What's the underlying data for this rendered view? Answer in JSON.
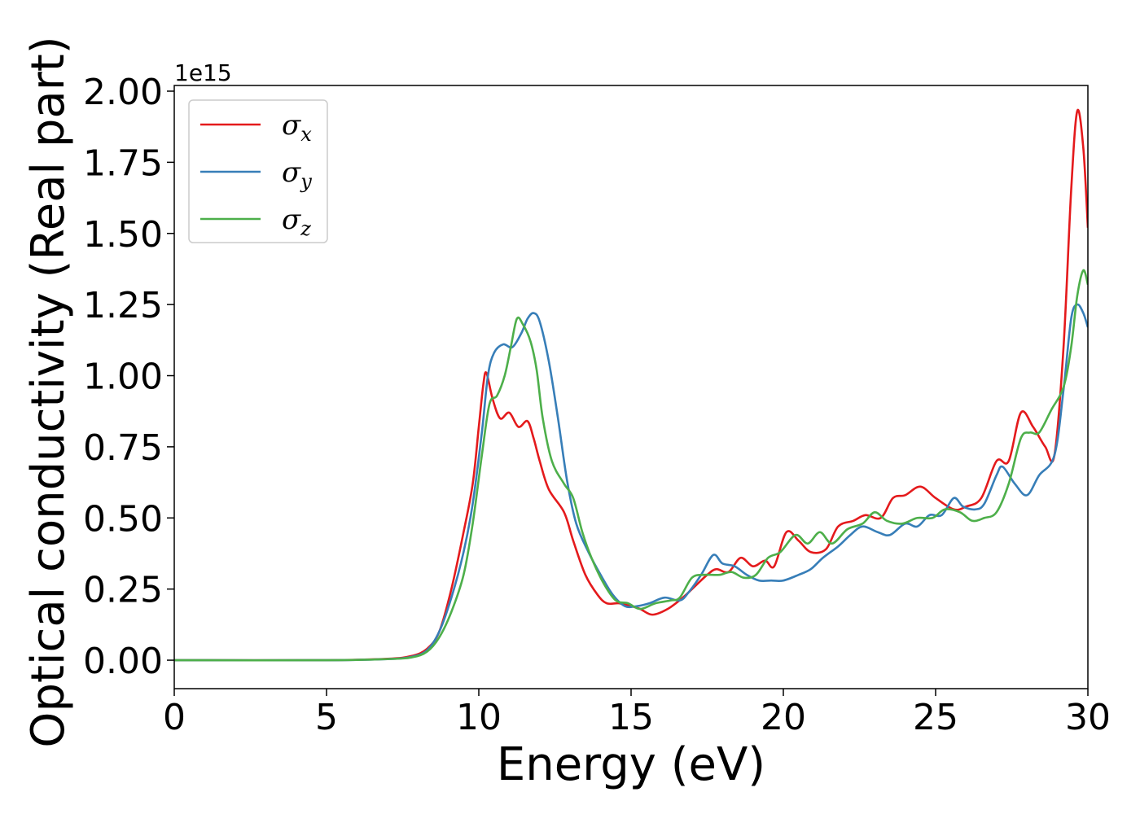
{
  "chart_data": {
    "type": "line",
    "xlabel": "Energy (eV)",
    "ylabel": "Optical conductivity (Real part)",
    "y_offset_label": "1e15",
    "xlim": [
      0,
      30
    ],
    "ylim": [
      -0.1,
      2.02
    ],
    "x_ticks": [
      0,
      5,
      10,
      15,
      20,
      25,
      30
    ],
    "x_tick_labels": [
      "0",
      "5",
      "10",
      "15",
      "20",
      "25",
      "30"
    ],
    "y_ticks": [
      0,
      0.25,
      0.5,
      0.75,
      1.0,
      1.25,
      1.5,
      1.75,
      2.0
    ],
    "y_tick_labels": [
      "0.00",
      "0.25",
      "0.50",
      "0.75",
      "1.00",
      "1.25",
      "1.50",
      "1.75",
      "2.00"
    ],
    "grid": false,
    "legend_position": "top-left",
    "series": [
      {
        "name": "σx",
        "symbol": "σ",
        "subscript": "x",
        "color": "#e41a1c",
        "points": [
          [
            0,
            0
          ],
          [
            5,
            0
          ],
          [
            7,
            0.005
          ],
          [
            7.8,
            0.015
          ],
          [
            8.3,
            0.04
          ],
          [
            8.7,
            0.1
          ],
          [
            9.1,
            0.25
          ],
          [
            9.5,
            0.45
          ],
          [
            9.8,
            0.62
          ],
          [
            10.0,
            0.82
          ],
          [
            10.15,
            0.97
          ],
          [
            10.25,
            1.01
          ],
          [
            10.45,
            0.92
          ],
          [
            10.7,
            0.85
          ],
          [
            11.0,
            0.87
          ],
          [
            11.3,
            0.82
          ],
          [
            11.6,
            0.84
          ],
          [
            11.8,
            0.78
          ],
          [
            12.0,
            0.7
          ],
          [
            12.3,
            0.6
          ],
          [
            12.8,
            0.52
          ],
          [
            13.1,
            0.42
          ],
          [
            13.5,
            0.3
          ],
          [
            13.9,
            0.23
          ],
          [
            14.2,
            0.2
          ],
          [
            14.6,
            0.2
          ],
          [
            15.0,
            0.19
          ],
          [
            15.3,
            0.18
          ],
          [
            15.7,
            0.16
          ],
          [
            16.2,
            0.18
          ],
          [
            16.7,
            0.22
          ],
          [
            17.1,
            0.26
          ],
          [
            17.5,
            0.3
          ],
          [
            17.8,
            0.32
          ],
          [
            18.2,
            0.31
          ],
          [
            18.6,
            0.36
          ],
          [
            19.0,
            0.33
          ],
          [
            19.4,
            0.35
          ],
          [
            19.7,
            0.33
          ],
          [
            20.1,
            0.45
          ],
          [
            20.5,
            0.42
          ],
          [
            20.9,
            0.38
          ],
          [
            21.4,
            0.39
          ],
          [
            21.8,
            0.47
          ],
          [
            22.3,
            0.49
          ],
          [
            22.7,
            0.51
          ],
          [
            23.2,
            0.5
          ],
          [
            23.6,
            0.57
          ],
          [
            24.0,
            0.58
          ],
          [
            24.5,
            0.61
          ],
          [
            25.0,
            0.57
          ],
          [
            25.6,
            0.53
          ],
          [
            26.0,
            0.54
          ],
          [
            26.5,
            0.57
          ],
          [
            27.0,
            0.7
          ],
          [
            27.4,
            0.7
          ],
          [
            27.8,
            0.87
          ],
          [
            28.2,
            0.82
          ],
          [
            28.6,
            0.75
          ],
          [
            28.9,
            0.72
          ],
          [
            29.2,
            1.1
          ],
          [
            29.45,
            1.65
          ],
          [
            29.65,
            1.93
          ],
          [
            29.85,
            1.8
          ],
          [
            30.0,
            1.52
          ]
        ]
      },
      {
        "name": "σy",
        "symbol": "σ",
        "subscript": "y",
        "color": "#377eb8",
        "points": [
          [
            0,
            0
          ],
          [
            5,
            0
          ],
          [
            7,
            0.004
          ],
          [
            7.8,
            0.012
          ],
          [
            8.3,
            0.035
          ],
          [
            8.7,
            0.1
          ],
          [
            9.1,
            0.22
          ],
          [
            9.5,
            0.38
          ],
          [
            9.8,
            0.55
          ],
          [
            10.1,
            0.8
          ],
          [
            10.3,
            1.0
          ],
          [
            10.5,
            1.08
          ],
          [
            10.8,
            1.11
          ],
          [
            11.1,
            1.1
          ],
          [
            11.4,
            1.15
          ],
          [
            11.6,
            1.2
          ],
          [
            11.8,
            1.22
          ],
          [
            12.0,
            1.19
          ],
          [
            12.3,
            1.05
          ],
          [
            12.6,
            0.85
          ],
          [
            12.9,
            0.63
          ],
          [
            13.2,
            0.48
          ],
          [
            13.6,
            0.38
          ],
          [
            14.0,
            0.3
          ],
          [
            14.4,
            0.23
          ],
          [
            14.8,
            0.19
          ],
          [
            15.2,
            0.19
          ],
          [
            15.6,
            0.2
          ],
          [
            16.1,
            0.22
          ],
          [
            16.6,
            0.21
          ],
          [
            16.9,
            0.24
          ],
          [
            17.3,
            0.3
          ],
          [
            17.7,
            0.37
          ],
          [
            18.0,
            0.34
          ],
          [
            18.4,
            0.33
          ],
          [
            18.8,
            0.3
          ],
          [
            19.2,
            0.28
          ],
          [
            19.6,
            0.28
          ],
          [
            20.0,
            0.28
          ],
          [
            20.5,
            0.3
          ],
          [
            20.9,
            0.32
          ],
          [
            21.3,
            0.36
          ],
          [
            21.8,
            0.4
          ],
          [
            22.2,
            0.44
          ],
          [
            22.6,
            0.47
          ],
          [
            23.1,
            0.45
          ],
          [
            23.5,
            0.44
          ],
          [
            24.0,
            0.48
          ],
          [
            24.4,
            0.47
          ],
          [
            24.8,
            0.51
          ],
          [
            25.2,
            0.51
          ],
          [
            25.6,
            0.57
          ],
          [
            25.9,
            0.54
          ],
          [
            26.3,
            0.53
          ],
          [
            26.6,
            0.55
          ],
          [
            27.0,
            0.65
          ],
          [
            27.2,
            0.68
          ],
          [
            27.6,
            0.62
          ],
          [
            28.0,
            0.58
          ],
          [
            28.4,
            0.65
          ],
          [
            28.9,
            0.72
          ],
          [
            29.2,
            0.95
          ],
          [
            29.45,
            1.2
          ],
          [
            29.65,
            1.25
          ],
          [
            29.85,
            1.22
          ],
          [
            30.0,
            1.17
          ]
        ]
      },
      {
        "name": "σz",
        "symbol": "σ",
        "subscript": "z",
        "color": "#4daf4a",
        "points": [
          [
            0,
            0
          ],
          [
            5,
            0
          ],
          [
            7,
            0.004
          ],
          [
            7.8,
            0.01
          ],
          [
            8.3,
            0.03
          ],
          [
            8.7,
            0.08
          ],
          [
            9.1,
            0.17
          ],
          [
            9.5,
            0.3
          ],
          [
            9.8,
            0.48
          ],
          [
            10.1,
            0.72
          ],
          [
            10.35,
            0.9
          ],
          [
            10.6,
            0.93
          ],
          [
            10.85,
            1.0
          ],
          [
            11.05,
            1.1
          ],
          [
            11.25,
            1.2
          ],
          [
            11.45,
            1.18
          ],
          [
            11.7,
            1.12
          ],
          [
            11.9,
            1.02
          ],
          [
            12.1,
            0.85
          ],
          [
            12.4,
            0.7
          ],
          [
            12.8,
            0.62
          ],
          [
            13.1,
            0.57
          ],
          [
            13.4,
            0.45
          ],
          [
            13.7,
            0.36
          ],
          [
            14.1,
            0.27
          ],
          [
            14.5,
            0.21
          ],
          [
            14.9,
            0.2
          ],
          [
            15.3,
            0.18
          ],
          [
            15.8,
            0.2
          ],
          [
            16.3,
            0.21
          ],
          [
            16.6,
            0.22
          ],
          [
            17.0,
            0.29
          ],
          [
            17.4,
            0.3
          ],
          [
            17.9,
            0.3
          ],
          [
            18.3,
            0.31
          ],
          [
            18.7,
            0.29
          ],
          [
            19.1,
            0.3
          ],
          [
            19.5,
            0.36
          ],
          [
            19.9,
            0.38
          ],
          [
            20.4,
            0.44
          ],
          [
            20.8,
            0.41
          ],
          [
            21.2,
            0.45
          ],
          [
            21.6,
            0.41
          ],
          [
            22.1,
            0.46
          ],
          [
            22.6,
            0.48
          ],
          [
            23.0,
            0.52
          ],
          [
            23.4,
            0.49
          ],
          [
            23.9,
            0.48
          ],
          [
            24.4,
            0.5
          ],
          [
            24.9,
            0.5
          ],
          [
            25.3,
            0.53
          ],
          [
            25.8,
            0.52
          ],
          [
            26.2,
            0.49
          ],
          [
            26.6,
            0.5
          ],
          [
            27.0,
            0.52
          ],
          [
            27.4,
            0.62
          ],
          [
            27.8,
            0.78
          ],
          [
            28.1,
            0.8
          ],
          [
            28.4,
            0.8
          ],
          [
            28.8,
            0.88
          ],
          [
            29.2,
            0.96
          ],
          [
            29.45,
            1.1
          ],
          [
            29.65,
            1.28
          ],
          [
            29.85,
            1.37
          ],
          [
            30.0,
            1.32
          ]
        ]
      }
    ]
  }
}
